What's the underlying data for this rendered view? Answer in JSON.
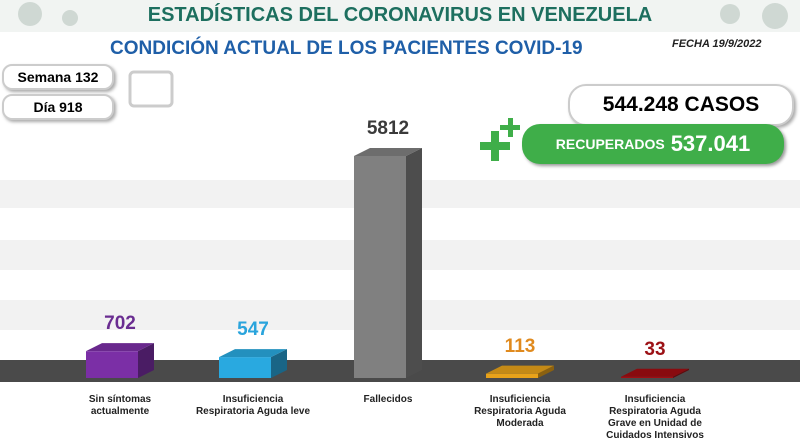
{
  "header": {
    "title": "ESTADÍSTICAS DEL CORONAVIRUS EN VENEZUELA",
    "subtitle": "CONDICIÓN ACTUAL DE LOS PACIENTES COVID-19",
    "date": "FECHA 19/9/2022"
  },
  "info": {
    "week": "Semana 132",
    "day": "Día 918",
    "cases": "544.248 CASOS",
    "recovered_label": "RECUPERADOS",
    "recovered_value": "537.041"
  },
  "chart_data": {
    "type": "bar3d",
    "categories": [
      "Sin síntomas actualmente",
      "Insuficiencia Respiratoria Aguda leve",
      "Fallecidos",
      "Insuficiencia Respiratoria Aguda Moderada",
      "Insuficiencia Respiratoria Aguda Grave en Unidad de Cuidados Intensivos"
    ],
    "values": [
      702,
      547,
      5812,
      113,
      33
    ],
    "colors": [
      "#7b2fa6",
      "#29a9e0",
      "#808080",
      "#e8a21a",
      "#a10d12"
    ],
    "label_colors": [
      "#6a2d91",
      "#2aa4dc",
      "#3a3a3a",
      "#e08a1e",
      "#9c1116"
    ]
  }
}
